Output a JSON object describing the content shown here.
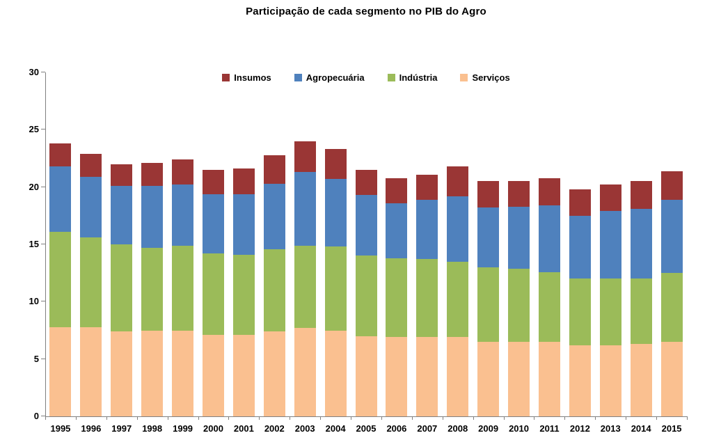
{
  "chart_data": {
    "type": "bar",
    "stacked": true,
    "title": "Participação de cada segmento no PIB do Agro",
    "xlabel": "",
    "ylabel": "",
    "ylim": [
      0,
      30
    ],
    "yticks": [
      0,
      5,
      10,
      15,
      20,
      25,
      30
    ],
    "grid": false,
    "legend_position": "top-center-inside",
    "legend_order": [
      "Insumos",
      "Agropecuária",
      "Indústria",
      "Serviços"
    ],
    "categories": [
      "1995",
      "1996",
      "1997",
      "1998",
      "1999",
      "2000",
      "2001",
      "2002",
      "2003",
      "2004",
      "2005",
      "2006",
      "2007",
      "2008",
      "2009",
      "2010",
      "2011",
      "2012",
      "2013",
      "2014",
      "2015"
    ],
    "series": [
      {
        "name": "Serviços",
        "slug": "servicos",
        "color": "#FAC090",
        "values": [
          7.8,
          7.8,
          7.4,
          7.5,
          7.5,
          7.1,
          7.1,
          7.4,
          7.7,
          7.5,
          7.0,
          6.9,
          6.9,
          6.9,
          6.5,
          6.5,
          6.5,
          6.2,
          6.2,
          6.3,
          6.5
        ]
      },
      {
        "name": "Indústria",
        "slug": "industria",
        "color": "#9BBB59",
        "values": [
          8.3,
          7.8,
          7.6,
          7.2,
          7.4,
          7.1,
          7.0,
          7.2,
          7.2,
          7.3,
          7.0,
          6.9,
          6.8,
          6.6,
          6.5,
          6.4,
          6.1,
          5.8,
          5.8,
          5.7,
          6.0
        ]
      },
      {
        "name": "Agropecuária",
        "slug": "agropecuaria",
        "color": "#4F81BD",
        "values": [
          5.7,
          5.3,
          5.1,
          5.4,
          5.3,
          5.2,
          5.3,
          5.7,
          6.4,
          5.9,
          5.3,
          4.8,
          5.2,
          5.7,
          5.2,
          5.4,
          5.8,
          5.5,
          5.9,
          6.1,
          6.4
        ]
      },
      {
        "name": "Insumos",
        "slug": "insumos",
        "color": "#9A3635",
        "values": [
          2.0,
          2.0,
          1.9,
          2.0,
          2.2,
          2.1,
          2.2,
          2.5,
          2.7,
          2.6,
          2.2,
          2.2,
          2.2,
          2.6,
          2.3,
          2.2,
          2.4,
          2.3,
          2.3,
          2.4,
          2.5
        ]
      }
    ],
    "totals": [
      23.8,
      22.9,
      22.0,
      22.1,
      22.4,
      21.5,
      21.6,
      22.8,
      24.0,
      23.3,
      21.5,
      20.8,
      21.1,
      21.8,
      20.5,
      20.5,
      20.8,
      19.8,
      20.2,
      20.5,
      21.4
    ],
    "axis_color": "#808080"
  }
}
